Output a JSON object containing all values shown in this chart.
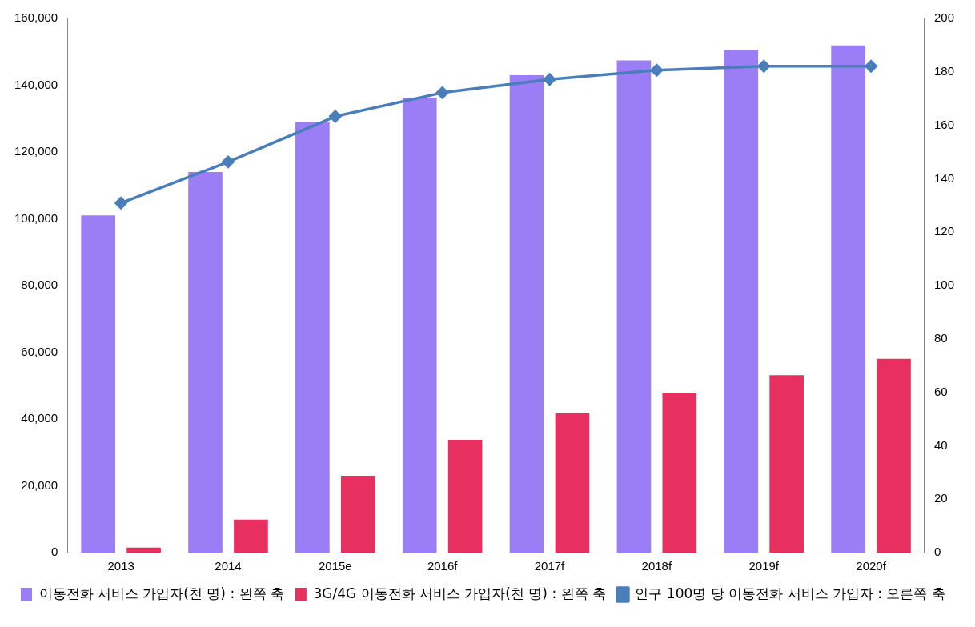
{
  "chart_data": {
    "type": "bar",
    "categories": [
      "2013",
      "2014",
      "2015e",
      "2016f",
      "2017f",
      "2018f",
      "2019f",
      "2020f"
    ],
    "series": [
      {
        "name": "이동전화 서비스 가입자(천 명) : 왼쪽 축",
        "color": "#9b7df5",
        "values": [
          101000,
          114000,
          129000,
          136300,
          143000,
          147400,
          150600,
          151900
        ]
      },
      {
        "name": "3G/4G 이동전화 서비스 가입자(천 명) : 왼쪽 축",
        "color": "#e83060",
        "values": [
          1500,
          9900,
          23000,
          33800,
          41700,
          47900,
          53100,
          58000
        ]
      },
      {
        "name": "인구 100명 당 이동전화 서비스 가입자 : 오른쪽 축",
        "type": "line",
        "axis": "y2",
        "color": "#4a7ebb",
        "marker": "diamond",
        "values": [
          130.9,
          146.3,
          163.3,
          172.2,
          177.2,
          180.6,
          182.1,
          182.1
        ]
      }
    ],
    "ylim": [
      0,
      160000
    ],
    "yticks": [
      {
        "value": 0,
        "label": "0"
      },
      {
        "value": 20000,
        "label": "20,000"
      },
      {
        "value": 40000,
        "label": "40,000"
      },
      {
        "value": 60000,
        "label": "60,000"
      },
      {
        "value": 80000,
        "label": "80,000"
      },
      {
        "value": 100000,
        "label": "100,000"
      },
      {
        "value": 120000,
        "label": "120,000"
      },
      {
        "value": 140000,
        "label": "140,000"
      },
      {
        "value": 160000,
        "label": "160,000"
      }
    ],
    "y2lim": [
      0,
      200
    ],
    "y2ticks": [
      0,
      20,
      40,
      60,
      80,
      100,
      120,
      140,
      160,
      180,
      200
    ],
    "legend": "bottom",
    "grid": false
  }
}
